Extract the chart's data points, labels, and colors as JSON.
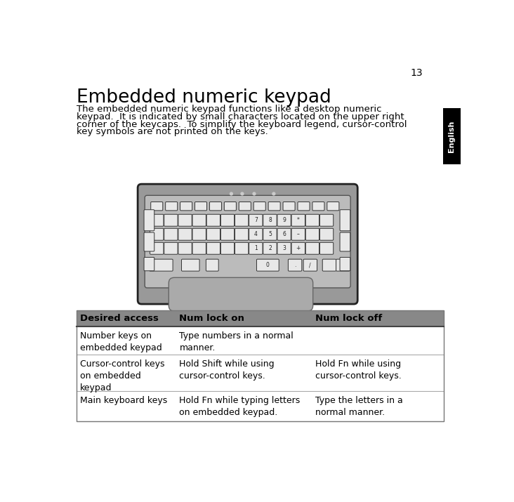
{
  "page_number": "13",
  "title": "Embedded numeric keypad",
  "body_lines": [
    "The embedded numeric keypad functions like a desktop numeric",
    "keypad.  It is indicated by small characters located on the upper right",
    "corner of the keycaps.  To simplify the keyboard legend, cursor-control",
    "key symbols are not printed on the keys."
  ],
  "sidebar_text": "English",
  "sidebar_bg": "#000000",
  "sidebar_text_color": "#ffffff",
  "table_header_bg": "#888888",
  "table_bg": "#ffffff",
  "table_line_color": "#aaaaaa",
  "table_cols": [
    "Desired access",
    "Num lock on",
    "Num lock off"
  ],
  "table_rows": [
    [
      "Number keys on\nembedded keypad",
      "Type numbers in a normal\nmanner.",
      ""
    ],
    [
      "Cursor-control keys\non embedded\nkeypad",
      "Hold Shift while using\ncursor-control keys.",
      "Hold Fn while using\ncursor-control keys."
    ],
    [
      "Main keyboard keys",
      "Hold Fn while typing letters\non embedded keypad.",
      "Type the letters in a\nnormal manner."
    ]
  ],
  "bg_color": "#ffffff",
  "key_color": "#e8e8e8",
  "key_border": "#333333",
  "kb_body_color": "#999999",
  "kb_inner_color": "#bbbbbb"
}
